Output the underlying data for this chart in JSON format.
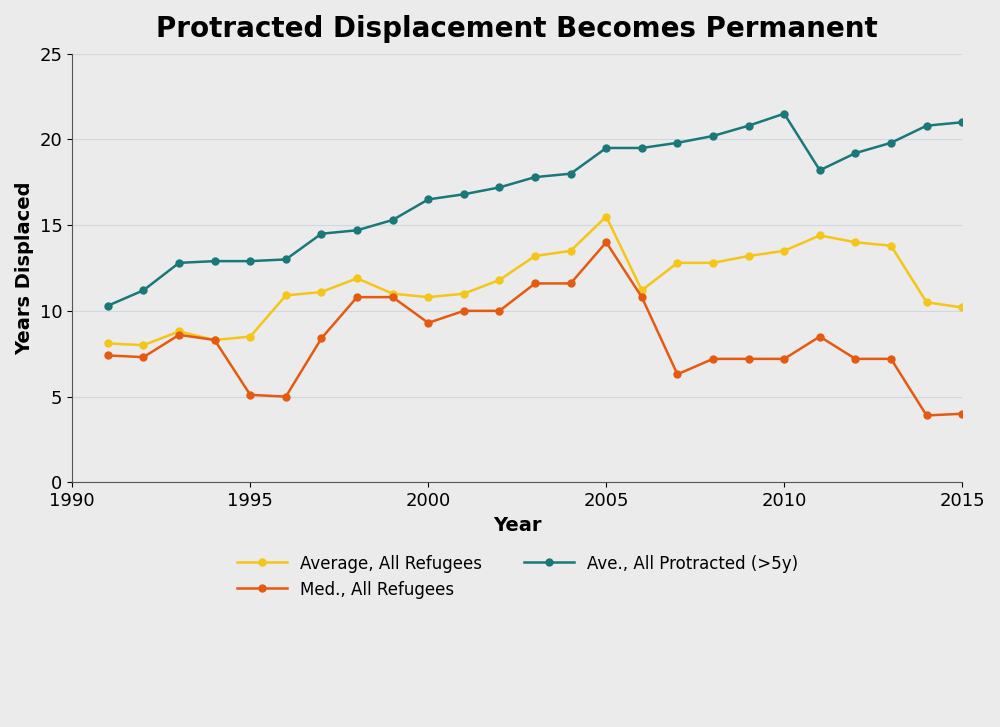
{
  "title": "Protracted Displacement Becomes Permanent",
  "xlabel": "Year",
  "ylabel": "Years Displaced",
  "background_color": "#ebebeb",
  "plot_bg_color": "#ebebeb",
  "years": [
    1991,
    1992,
    1993,
    1994,
    1995,
    1996,
    1997,
    1998,
    1999,
    2000,
    2001,
    2002,
    2003,
    2004,
    2005,
    2006,
    2007,
    2008,
    2009,
    2010,
    2011,
    2012,
    2013,
    2014,
    2015
  ],
  "avg_all": [
    8.1,
    8.0,
    8.8,
    8.3,
    8.5,
    10.9,
    11.1,
    11.9,
    11.0,
    10.8,
    11.0,
    11.8,
    13.2,
    13.5,
    15.5,
    11.2,
    12.8,
    12.8,
    13.2,
    13.5,
    14.4,
    14.0,
    13.8,
    10.5,
    10.2
  ],
  "med_all": [
    7.4,
    7.3,
    8.6,
    8.3,
    5.1,
    5.0,
    8.4,
    10.8,
    10.8,
    9.3,
    10.0,
    10.0,
    11.6,
    11.6,
    14.0,
    10.8,
    6.3,
    7.2,
    7.2,
    7.2,
    8.5,
    7.2,
    7.2,
    3.9,
    4.0
  ],
  "avg_protracted": [
    10.3,
    11.2,
    12.8,
    12.9,
    12.9,
    13.0,
    14.5,
    14.7,
    15.3,
    16.5,
    16.8,
    17.2,
    17.8,
    18.0,
    19.5,
    19.5,
    19.8,
    20.2,
    20.8,
    21.5,
    18.2,
    19.2,
    19.8,
    20.8,
    21.0
  ],
  "avg_all_color": "#f5c518",
  "med_all_color": "#e55a10",
  "avg_protracted_color": "#1a7878",
  "line_width": 1.8,
  "marker_size": 5,
  "ylim": [
    0,
    25
  ],
  "xlim": [
    1990,
    2015
  ],
  "yticks": [
    0,
    5,
    10,
    15,
    20,
    25
  ],
  "xticks": [
    1990,
    1995,
    2000,
    2005,
    2010,
    2015
  ],
  "legend_row1": [
    "Average, All Refugees",
    "Med., All Refugees"
  ],
  "legend_row2": [
    "Ave., All Protracted (>5y)"
  ],
  "title_fontsize": 20,
  "axis_label_fontsize": 14,
  "tick_fontsize": 13,
  "legend_fontsize": 12
}
